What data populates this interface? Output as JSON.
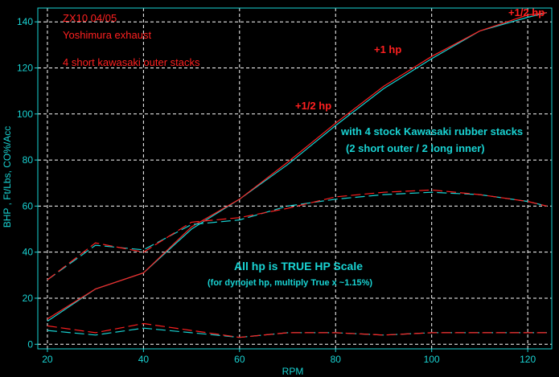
{
  "chart_data": {
    "type": "line",
    "title": "",
    "xlabel": "RPM",
    "ylabel": "BHP , Ft/Lbs, CO%/Acc",
    "xlim": [
      18,
      125
    ],
    "ylim": [
      -2,
      146
    ],
    "x_ticks": [
      20,
      40,
      60,
      80,
      100,
      120
    ],
    "y_ticks": [
      0,
      20,
      40,
      60,
      80,
      100,
      120,
      140
    ],
    "grid": true,
    "colors": {
      "background": "#000000",
      "axis": "#19d3d3",
      "grid": "#ffffff",
      "red": "#ff2020",
      "cyan": "#19d3d3"
    },
    "series": [
      {
        "color": "#19d3d3",
        "style": "solid",
        "points": [
          [
            20,
            10
          ],
          [
            30,
            24
          ],
          [
            40,
            31
          ],
          [
            50,
            50
          ],
          [
            60,
            63
          ],
          [
            70,
            78
          ],
          [
            80,
            95
          ],
          [
            90,
            111
          ],
          [
            100,
            124
          ],
          [
            110,
            136
          ],
          [
            120,
            142
          ],
          [
            124,
            144
          ]
        ]
      },
      {
        "color": "#ff2020",
        "style": "solid",
        "points": [
          [
            20,
            11
          ],
          [
            30,
            24
          ],
          [
            40,
            31
          ],
          [
            50,
            51
          ],
          [
            60,
            63
          ],
          [
            70,
            79
          ],
          [
            80,
            96
          ],
          [
            90,
            112
          ],
          [
            100,
            125
          ],
          [
            110,
            136
          ],
          [
            120,
            143
          ],
          [
            124,
            144
          ]
        ]
      },
      {
        "color": "#19d3d3",
        "style": "dashed",
        "points": [
          [
            20,
            28
          ],
          [
            30,
            43
          ],
          [
            40,
            41
          ],
          [
            50,
            52
          ],
          [
            60,
            54
          ],
          [
            70,
            60
          ],
          [
            80,
            63
          ],
          [
            90,
            65
          ],
          [
            100,
            66
          ],
          [
            110,
            65
          ],
          [
            120,
            62
          ],
          [
            124,
            60
          ]
        ]
      },
      {
        "color": "#ff2020",
        "style": "dashed",
        "points": [
          [
            20,
            28
          ],
          [
            30,
            44
          ],
          [
            40,
            40
          ],
          [
            50,
            53
          ],
          [
            60,
            55
          ],
          [
            70,
            59
          ],
          [
            80,
            64
          ],
          [
            90,
            66
          ],
          [
            100,
            67
          ],
          [
            110,
            65
          ],
          [
            120,
            62
          ],
          [
            124,
            60
          ]
        ]
      },
      {
        "color": "#19d3d3",
        "style": "dashed",
        "points": [
          [
            20,
            6
          ],
          [
            30,
            4
          ],
          [
            40,
            7
          ],
          [
            50,
            5
          ],
          [
            60,
            3
          ],
          [
            70,
            5
          ],
          [
            80,
            5
          ],
          [
            90,
            4
          ],
          [
            100,
            5
          ],
          [
            110,
            5
          ],
          [
            120,
            5
          ],
          [
            124,
            5
          ]
        ]
      },
      {
        "color": "#ff2020",
        "style": "dashed",
        "points": [
          [
            20,
            8
          ],
          [
            30,
            5
          ],
          [
            40,
            9
          ],
          [
            50,
            6
          ],
          [
            60,
            3
          ],
          [
            70,
            5
          ],
          [
            80,
            5
          ],
          [
            90,
            4
          ],
          [
            100,
            5
          ],
          [
            110,
            5
          ],
          [
            120,
            5
          ],
          [
            124,
            5
          ]
        ]
      }
    ]
  },
  "annotations": {
    "title_line1": "ZX10 04/05",
    "title_line2": "Yoshimura exhaust",
    "title_line3": "4 short kawasaki outer stacks",
    "gain_top": "+1/2  hp",
    "gain_mid": "+1  hp",
    "gain_low": "+1/2  hp",
    "comparison_line1": "with 4 stock Kawasaki rubber stacks",
    "comparison_line2": "(2 short outer / 2 long inner)",
    "scale_line1": "All hp is TRUE HP Scale",
    "scale_line2": "(for dynojet hp, multiply True x ~1.15%)"
  }
}
